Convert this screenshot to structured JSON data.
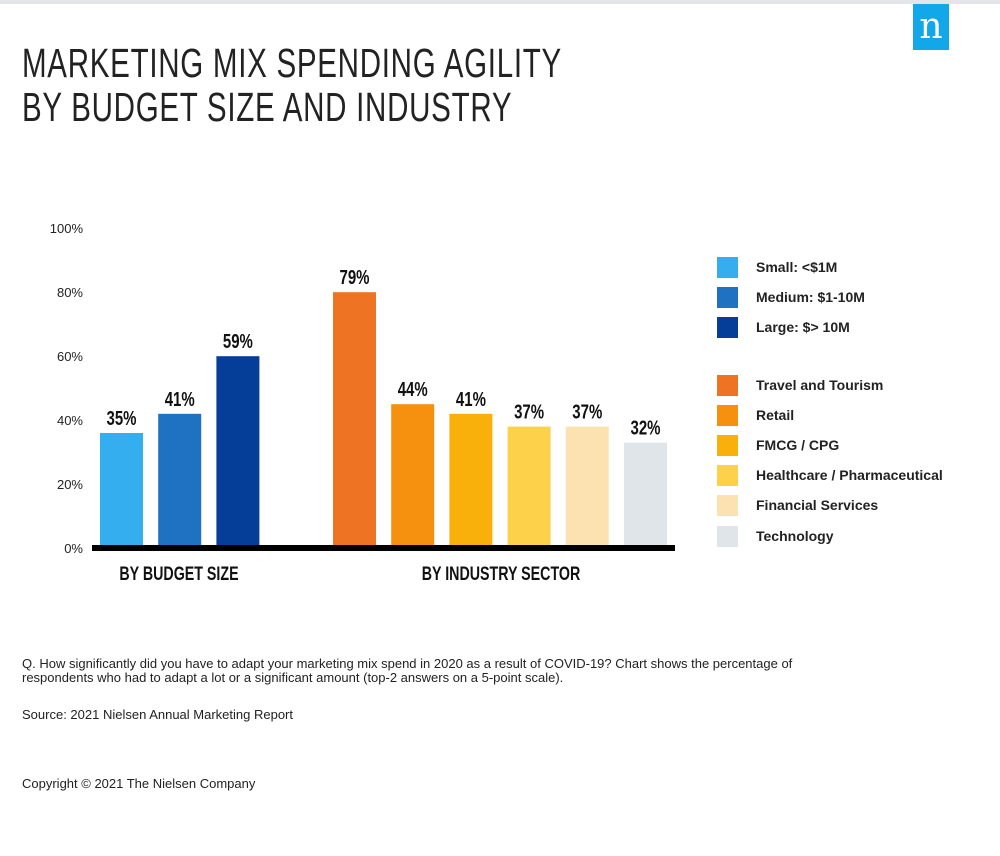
{
  "header": {
    "title_line1": "MARKETING MIX SPENDING AGILITY",
    "title_line2": "BY BUDGET SIZE AND INDUSTRY",
    "logo": "n",
    "logo_color": "#12a7e8"
  },
  "chart_data": {
    "type": "bar",
    "title": "MARKETING MIX SPENDING AGILITY BY BUDGET SIZE AND INDUSTRY",
    "ylim": [
      0,
      100
    ],
    "yticks": [
      "0%",
      "20%",
      "40%",
      "60%",
      "80%",
      "100%"
    ],
    "ytick_values": [
      0,
      20,
      40,
      60,
      80,
      100
    ],
    "groups": [
      {
        "label": "BY BUDGET SIZE",
        "bars": [
          {
            "name": "Small: <$1M",
            "value": 35,
            "label": "35%",
            "color": "#35aeef"
          },
          {
            "name": "Medium: $1-10M",
            "value": 41,
            "label": "41%",
            "color": "#1f72c2"
          },
          {
            "name": "Large: $> 10M",
            "value": 59,
            "label": "59%",
            "color": "#053e98"
          }
        ]
      },
      {
        "label": "BY INDUSTRY SECTOR",
        "bars": [
          {
            "name": "Travel and Tourism",
            "value": 79,
            "label": "79%",
            "color": "#ee7322"
          },
          {
            "name": "Retail",
            "value": 44,
            "label": "44%",
            "color": "#f6900f"
          },
          {
            "name": "FMCG / CPG",
            "value": 41,
            "label": "41%",
            "color": "#fab00a"
          },
          {
            "name": "Healthcare / Pharmaceutical",
            "value": 37,
            "label": "37%",
            "color": "#fdd24a"
          },
          {
            "name": "Financial Services",
            "value": 37,
            "label": "37%",
            "color": "#fbe2b0"
          },
          {
            "name": "Technology",
            "value": 32,
            "label": "32%",
            "color": "#dfe5e8"
          }
        ]
      }
    ],
    "legend_placement": "right"
  },
  "footer": {
    "question": "Q. How significantly did you have to adapt your marketing mix spend in 2020 as a result of COVID-19? Chart shows the percentage of respondents who had to adapt a lot or a significant amount (top-2 answers on a 5-point scale).",
    "source": "Source: 2021 Nielsen Annual Marketing Report",
    "copyright": "Copyright © 2021 The Nielsen Company"
  }
}
